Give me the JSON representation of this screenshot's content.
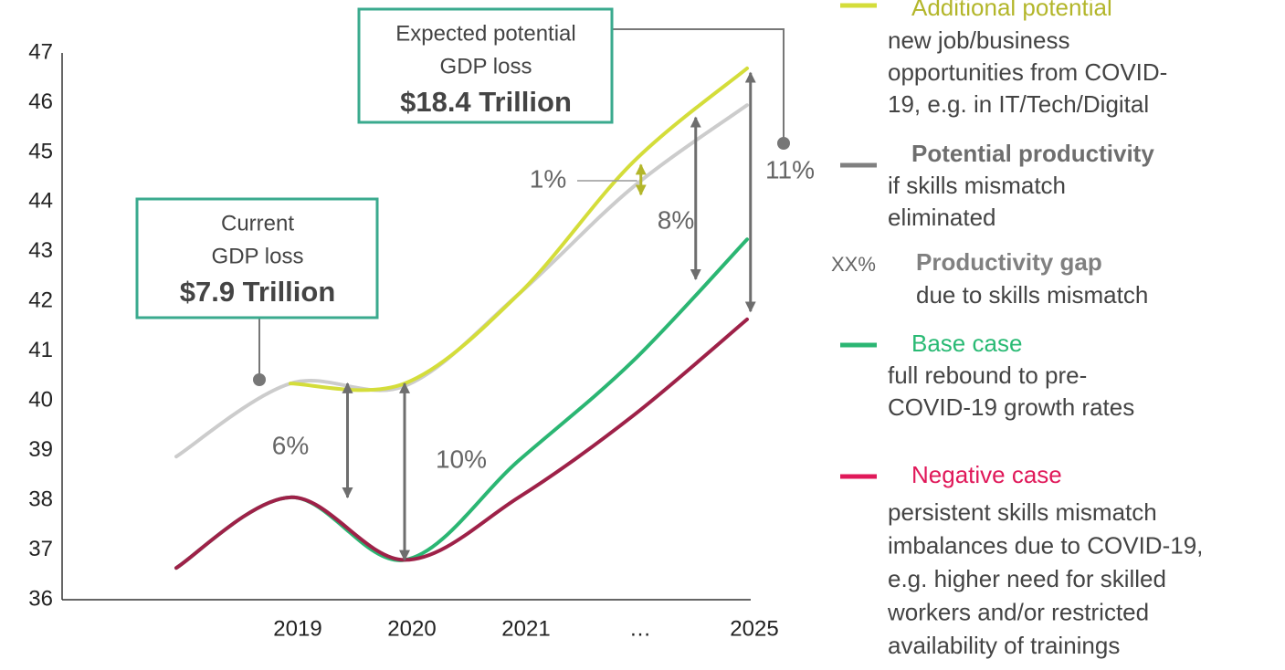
{
  "chart_data": {
    "type": "line",
    "categories": [
      null,
      "2019",
      "2020",
      "2021",
      "…",
      "2025"
    ],
    "ylim": [
      36,
      47
    ],
    "yticks": [
      36,
      37,
      38,
      39,
      40,
      41,
      42,
      43,
      44,
      45,
      46,
      47
    ],
    "series": [
      {
        "name": "Additional potential",
        "color": "#d4dd3a",
        "legend_color": "#d4dd3a",
        "label_color": "#b3b62a",
        "bold": false,
        "description": [
          "new job/business",
          "opportunities from COVID-",
          "19, e.g. in IT/Tech/Digital"
        ],
        "values": [
          null,
          40.35,
          40.35,
          42.15,
          44.8,
          46.69
        ]
      },
      {
        "name": "Potential productivity",
        "color": "#cccccc",
        "legend_color": "#808080",
        "label_color": "#6e6e6e",
        "bold": true,
        "description": [
          "if skills mismatch",
          "eliminated"
        ],
        "values": [
          38.88,
          40.35,
          40.3,
          42.15,
          44.3,
          45.95
        ]
      },
      {
        "name": "Base case",
        "color": "#2bb673",
        "legend_color": "#2bb673",
        "label_color": "#29ba74",
        "bold": false,
        "description": [
          "full rebound to pre-",
          "COVID-19 growth rates"
        ],
        "values": [
          36.64,
          38.06,
          36.8,
          38.8,
          40.8,
          43.25
        ]
      },
      {
        "name": "Negative case",
        "color": "#9e2148",
        "legend_color": "#e0195a",
        "label_color": "#e0195a",
        "bold": false,
        "description": [
          "persistent skills mismatch",
          "imbalances due to COVID-19,",
          "e.g. higher need for skilled",
          "workers and/or restricted",
          "availability of trainings"
        ],
        "values": [
          36.64,
          38.06,
          36.8,
          38.06,
          39.7,
          41.64
        ]
      }
    ],
    "gap_legend": {
      "symbol": "XX%",
      "name": "Productivity gap",
      "description": [
        "due to skills mismatch"
      ]
    },
    "gaps": [
      {
        "label": "6%",
        "x": 1.5,
        "from": 40.35,
        "to": 38.06,
        "color": "#6e6e6e"
      },
      {
        "label": "10%",
        "x": 2,
        "from": 40.35,
        "to": 36.8,
        "color": "#6e6e6e"
      },
      {
        "label": "1%",
        "x": 4.07,
        "from": 44.75,
        "to": 44.15,
        "color": "#b3b62a"
      },
      {
        "label": "8%",
        "x": 4.55,
        "from": 45.7,
        "to": 42.45,
        "color": "#6e6e6e"
      },
      {
        "label": "11%",
        "x": 5.03,
        "from": 46.6,
        "to": 41.8,
        "color": "#6e6e6e"
      }
    ],
    "callouts": [
      {
        "lines": [
          "Current",
          "GDP loss"
        ],
        "value": "$7.9 Trillion"
      },
      {
        "lines": [
          "Expected potential",
          "GDP loss"
        ],
        "value": "$18.4 Trillion"
      }
    ]
  }
}
